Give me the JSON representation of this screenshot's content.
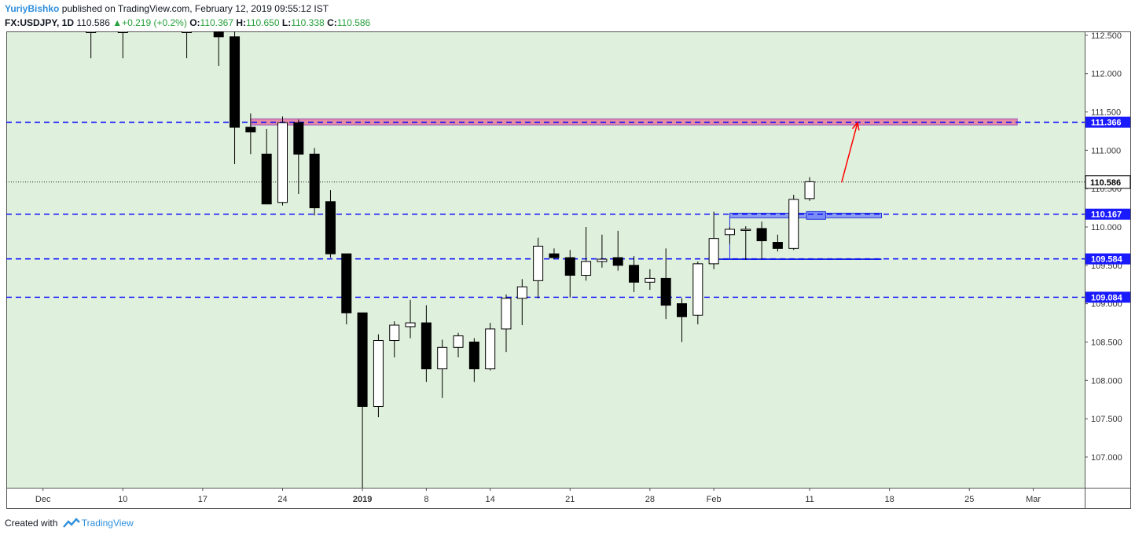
{
  "header": {
    "author": "YuriyBishko",
    "published_text": " published on TradingView.com, February 12, 2019 09:55:12 IST",
    "symbol": "FX:USDJPY, 1D",
    "last": "110.586",
    "change": "+0.219 (+0.2%)",
    "open_label": "O:",
    "open": "110.367",
    "high_label": "H:",
    "high": "110.650",
    "low_label": "L:",
    "low": "110.338",
    "close_label": "C:",
    "close": "110.586"
  },
  "footer": {
    "created_with": "Created with",
    "brand": "TradingView"
  },
  "colors": {
    "background": "#dff0dc",
    "level_line": "#0000ff",
    "resistance_zone": "#e87a9a",
    "support_zone": "#7b8cf5",
    "arrow": "#ff0000",
    "label_blue": "#1a1aff"
  },
  "chart_data": {
    "type": "candlestick",
    "title": "FX:USDJPY, 1D",
    "ylim": [
      106.6,
      112.55
    ],
    "y_ticks": [
      "112.500",
      "112.000",
      "111.500",
      "111.000",
      "110.500",
      "110.000",
      "109.500",
      "109.000",
      "108.500",
      "108.000",
      "107.500",
      "107.000"
    ],
    "x_ticks": [
      {
        "label": "Dec",
        "day": -15
      },
      {
        "label": "10",
        "day": -10
      },
      {
        "label": "17",
        "day": -5
      },
      {
        "label": "24",
        "day": 0
      },
      {
        "label": "2019",
        "day": 5
      },
      {
        "label": "8",
        "day": 9
      },
      {
        "label": "14",
        "day": 13
      },
      {
        "label": "21",
        "day": 18
      },
      {
        "label": "28",
        "day": 23
      },
      {
        "label": "Feb",
        "day": 27
      },
      {
        "label": "11",
        "day": 33
      },
      {
        "label": "18",
        "day": 38
      },
      {
        "label": "25",
        "day": 43
      },
      {
        "label": "Mar",
        "day": 47
      }
    ],
    "levels": [
      {
        "value": 111.366,
        "label": "111.366"
      },
      {
        "value": 110.167,
        "label": "110.167"
      },
      {
        "value": 109.584,
        "label": "109.584"
      },
      {
        "value": 109.084,
        "label": "109.084"
      }
    ],
    "last_price": {
      "value": 110.586,
      "label": "110.586"
    },
    "resistance_zone": {
      "from_day": -2,
      "to_day": 46,
      "low": 111.33,
      "high": 111.41
    },
    "support_zone": {
      "from_day": 28,
      "to_day": 37.5,
      "low": 110.12,
      "high": 110.18
    },
    "support_line": {
      "from_day": 27,
      "to_day": 37.5,
      "value": 109.58
    },
    "arrow": {
      "from_day": 35,
      "from_value": 110.58,
      "to_day": 36,
      "to_value": 111.36
    },
    "candles": [
      {
        "d": -12,
        "o": 112.55,
        "h": 112.55,
        "l": 112.2,
        "c": 112.55
      },
      {
        "d": -10,
        "o": 112.55,
        "h": 112.55,
        "l": 112.2,
        "c": 112.55
      },
      {
        "d": -6,
        "o": 112.55,
        "h": 112.55,
        "l": 112.2,
        "c": 112.55
      },
      {
        "d": -4,
        "o": 112.55,
        "h": 112.55,
        "l": 112.1,
        "c": 112.48
      },
      {
        "d": -3,
        "o": 112.48,
        "h": 112.55,
        "l": 110.82,
        "c": 111.3
      },
      {
        "d": -2,
        "o": 111.3,
        "h": 111.48,
        "l": 110.95,
        "c": 111.24
      },
      {
        "d": -1,
        "o": 110.95,
        "h": 111.28,
        "l": 110.3,
        "c": 110.3
      },
      {
        "d": 0,
        "o": 110.32,
        "h": 111.44,
        "l": 110.28,
        "c": 111.36
      },
      {
        "d": 1,
        "o": 111.36,
        "h": 111.4,
        "l": 110.43,
        "c": 110.95
      },
      {
        "d": 2,
        "o": 110.95,
        "h": 111.03,
        "l": 110.15,
        "c": 110.25
      },
      {
        "d": 3,
        "o": 110.33,
        "h": 110.48,
        "l": 109.6,
        "c": 109.65
      },
      {
        "d": 4,
        "o": 109.65,
        "h": 109.65,
        "l": 108.73,
        "c": 108.88
      },
      {
        "d": 5,
        "o": 108.88,
        "h": 108.88,
        "l": 106.6,
        "c": 107.66
      },
      {
        "d": 6,
        "o": 107.66,
        "h": 108.6,
        "l": 107.52,
        "c": 108.52
      },
      {
        "d": 7,
        "o": 108.52,
        "h": 108.77,
        "l": 108.3,
        "c": 108.72
      },
      {
        "d": 8,
        "o": 108.7,
        "h": 109.05,
        "l": 108.55,
        "c": 108.75
      },
      {
        "d": 9,
        "o": 108.75,
        "h": 108.98,
        "l": 107.98,
        "c": 108.15
      },
      {
        "d": 10,
        "o": 108.15,
        "h": 108.53,
        "l": 107.77,
        "c": 108.43
      },
      {
        "d": 11,
        "o": 108.43,
        "h": 108.62,
        "l": 108.3,
        "c": 108.58
      },
      {
        "d": 12,
        "o": 108.5,
        "h": 108.55,
        "l": 107.98,
        "c": 108.15
      },
      {
        "d": 13,
        "o": 108.15,
        "h": 108.75,
        "l": 108.13,
        "c": 108.67
      },
      {
        "d": 14,
        "o": 108.67,
        "h": 109.12,
        "l": 108.37,
        "c": 109.07
      },
      {
        "d": 15,
        "o": 109.07,
        "h": 109.32,
        "l": 108.72,
        "c": 109.22
      },
      {
        "d": 16,
        "o": 109.3,
        "h": 109.86,
        "l": 109.07,
        "c": 109.75
      },
      {
        "d": 17,
        "o": 109.65,
        "h": 109.72,
        "l": 109.58,
        "c": 109.6
      },
      {
        "d": 18,
        "o": 109.6,
        "h": 109.7,
        "l": 109.08,
        "c": 109.37
      },
      {
        "d": 19,
        "o": 109.37,
        "h": 110.0,
        "l": 109.3,
        "c": 109.55
      },
      {
        "d": 20,
        "o": 109.55,
        "h": 109.9,
        "l": 109.47,
        "c": 109.58
      },
      {
        "d": 21,
        "o": 109.6,
        "h": 109.95,
        "l": 109.43,
        "c": 109.5
      },
      {
        "d": 22,
        "o": 109.5,
        "h": 109.62,
        "l": 109.15,
        "c": 109.28
      },
      {
        "d": 23,
        "o": 109.28,
        "h": 109.45,
        "l": 109.18,
        "c": 109.33
      },
      {
        "d": 24,
        "o": 109.33,
        "h": 109.72,
        "l": 108.8,
        "c": 108.98
      },
      {
        "d": 25,
        "o": 109.0,
        "h": 109.07,
        "l": 108.5,
        "c": 108.83
      },
      {
        "d": 26,
        "o": 108.85,
        "h": 109.55,
        "l": 108.73,
        "c": 109.52
      },
      {
        "d": 27,
        "o": 109.52,
        "h": 110.2,
        "l": 109.45,
        "c": 109.85
      },
      {
        "d": 28,
        "o": 109.9,
        "h": 110.0,
        "l": 109.78,
        "c": 109.97
      },
      {
        "d": 29,
        "o": 109.97,
        "h": 110.01,
        "l": 109.57,
        "c": 109.97
      },
      {
        "d": 30,
        "o": 109.98,
        "h": 110.07,
        "l": 109.58,
        "c": 109.82
      },
      {
        "d": 31,
        "o": 109.8,
        "h": 109.9,
        "l": 109.68,
        "c": 109.72
      },
      {
        "d": 32,
        "o": 109.72,
        "h": 110.42,
        "l": 109.7,
        "c": 110.36
      },
      {
        "d": 33,
        "o": 110.37,
        "h": 110.65,
        "l": 110.34,
        "c": 110.59
      }
    ]
  }
}
